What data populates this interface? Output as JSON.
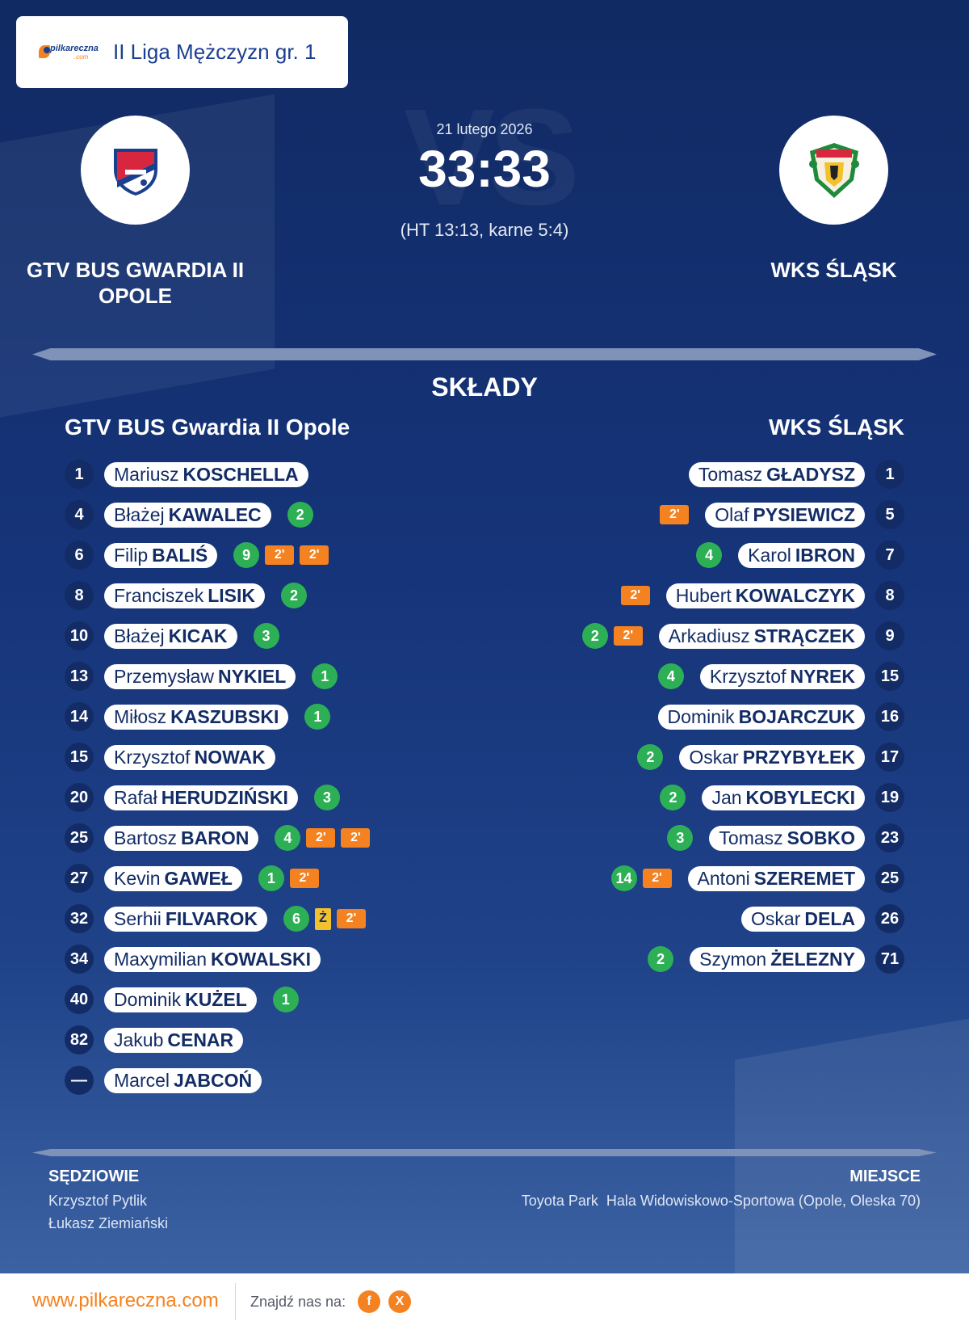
{
  "header": {
    "league_logo_text": "pilkareczna",
    "league_logo_suffix": ".com",
    "league": "II Liga Mężczyzn gr. 1"
  },
  "match": {
    "watermark": "VS",
    "date": "21 lutego 2026",
    "score": "33:33",
    "score_detail": "(HT 13:13, karne 5:4)",
    "home_team": "GTV BUS GWARDIA II OPOLE",
    "away_team": "WKS ŚLĄSK"
  },
  "squads": {
    "heading": "SKŁADY",
    "home_title": "GTV BUS Gwardia II Opole",
    "away_title": "WKS ŚLĄSK",
    "home": [
      {
        "num": "1",
        "first": "Mariusz",
        "last": "KOSCHELLA",
        "marks": []
      },
      {
        "num": "4",
        "first": "Błażej",
        "last": "KAWALEC",
        "marks": [
          {
            "type": "goals",
            "text": "2"
          }
        ]
      },
      {
        "num": "6",
        "first": "Filip",
        "last": "BALIŚ",
        "marks": [
          {
            "type": "goals",
            "text": "9"
          },
          {
            "type": "susp",
            "text": "2'"
          },
          {
            "type": "susp",
            "text": "2'"
          }
        ]
      },
      {
        "num": "8",
        "first": "Franciszek",
        "last": "LISIK",
        "marks": [
          {
            "type": "goals",
            "text": "2"
          }
        ]
      },
      {
        "num": "10",
        "first": "Błażej",
        "last": "KICAK",
        "marks": [
          {
            "type": "goals",
            "text": "3"
          }
        ]
      },
      {
        "num": "13",
        "first": "Przemysław",
        "last": "NYKIEL",
        "marks": [
          {
            "type": "goals",
            "text": "1"
          }
        ]
      },
      {
        "num": "14",
        "first": "Miłosz",
        "last": "KASZUBSKI",
        "marks": [
          {
            "type": "goals",
            "text": "1"
          }
        ]
      },
      {
        "num": "15",
        "first": "Krzysztof",
        "last": "NOWAK",
        "marks": []
      },
      {
        "num": "20",
        "first": "Rafał",
        "last": "HERUDZIŃSKI",
        "marks": [
          {
            "type": "goals",
            "text": "3"
          }
        ]
      },
      {
        "num": "25",
        "first": "Bartosz",
        "last": "BARON",
        "marks": [
          {
            "type": "goals",
            "text": "4"
          },
          {
            "type": "susp",
            "text": "2'"
          },
          {
            "type": "susp",
            "text": "2'"
          }
        ]
      },
      {
        "num": "27",
        "first": "Kevin",
        "last": "GAWEŁ",
        "marks": [
          {
            "type": "goals",
            "text": "1"
          },
          {
            "type": "susp",
            "text": "2'"
          }
        ]
      },
      {
        "num": "32",
        "first": "Serhii",
        "last": "FILVAROK",
        "marks": [
          {
            "type": "goals",
            "text": "6"
          },
          {
            "type": "yellow",
            "text": "Ż"
          },
          {
            "type": "susp",
            "text": "2'"
          }
        ]
      },
      {
        "num": "34",
        "first": "Maxymilian",
        "last": "KOWALSKI",
        "marks": []
      },
      {
        "num": "40",
        "first": "Dominik",
        "last": "KUŻEL",
        "marks": [
          {
            "type": "goals",
            "text": "1"
          }
        ]
      },
      {
        "num": "82",
        "first": "Jakub",
        "last": "CENAR",
        "marks": []
      },
      {
        "num": "—",
        "first": "Marcel",
        "last": "JABCOŃ",
        "marks": []
      }
    ],
    "away": [
      {
        "num": "1",
        "first": "Tomasz",
        "last": "GŁADYSZ",
        "marks": []
      },
      {
        "num": "5",
        "first": "Olaf",
        "last": "PYSIEWICZ",
        "marks": [
          {
            "type": "susp",
            "text": "2'"
          }
        ]
      },
      {
        "num": "7",
        "first": "Karol",
        "last": "IBRON",
        "marks": [
          {
            "type": "goals",
            "text": "4"
          }
        ]
      },
      {
        "num": "8",
        "first": "Hubert",
        "last": "KOWALCZYK",
        "marks": [
          {
            "type": "susp",
            "text": "2'"
          }
        ]
      },
      {
        "num": "9",
        "first": "Arkadiusz",
        "last": "STRĄCZEK",
        "marks": [
          {
            "type": "susp",
            "text": "2'"
          },
          {
            "type": "goals",
            "text": "2"
          }
        ]
      },
      {
        "num": "15",
        "first": "Krzysztof",
        "last": "NYREK",
        "marks": [
          {
            "type": "goals",
            "text": "4"
          }
        ]
      },
      {
        "num": "16",
        "first": "Dominik",
        "last": "BOJARCZUK",
        "marks": []
      },
      {
        "num": "17",
        "first": "Oskar",
        "last": "PRZYBYŁEK",
        "marks": [
          {
            "type": "goals",
            "text": "2"
          }
        ]
      },
      {
        "num": "19",
        "first": "Jan",
        "last": "KOBYLECKI",
        "marks": [
          {
            "type": "goals",
            "text": "2"
          }
        ]
      },
      {
        "num": "23",
        "first": "Tomasz",
        "last": "SOBKO",
        "marks": [
          {
            "type": "goals",
            "text": "3"
          }
        ]
      },
      {
        "num": "25",
        "first": "Antoni",
        "last": "SZEREMET",
        "marks": [
          {
            "type": "susp",
            "text": "2'"
          },
          {
            "type": "goals",
            "text": "14"
          }
        ]
      },
      {
        "num": "26",
        "first": "Oskar",
        "last": "DELA",
        "marks": []
      },
      {
        "num": "71",
        "first": "Szymon",
        "last": "ŻELEZNY",
        "marks": [
          {
            "type": "goals",
            "text": "2"
          }
        ]
      }
    ]
  },
  "officials": {
    "referees_label": "SĘDZIOWIE",
    "referees": [
      "Krzysztof Pytlik",
      "Łukasz Ziemiański"
    ],
    "venue_label": "MIEJSCE",
    "venue": "Toyota Park  Hala Widowiskowo-Sportowa (Opole, Oleska 70)"
  },
  "footer": {
    "url": "www.pilkareczna.com",
    "find_us": "Znajdź nas na:",
    "facebook_glyph": "f",
    "x_glyph": "X"
  },
  "colors": {
    "accent": "#f58220",
    "navy": "#132c66",
    "goal_green": "#2db055",
    "yellow_card": "#f2c12e"
  },
  "icons": [
    "pilkareczna-logo",
    "gwardia-opole-crest",
    "wks-slask-crest",
    "facebook-icon",
    "x-icon"
  ]
}
